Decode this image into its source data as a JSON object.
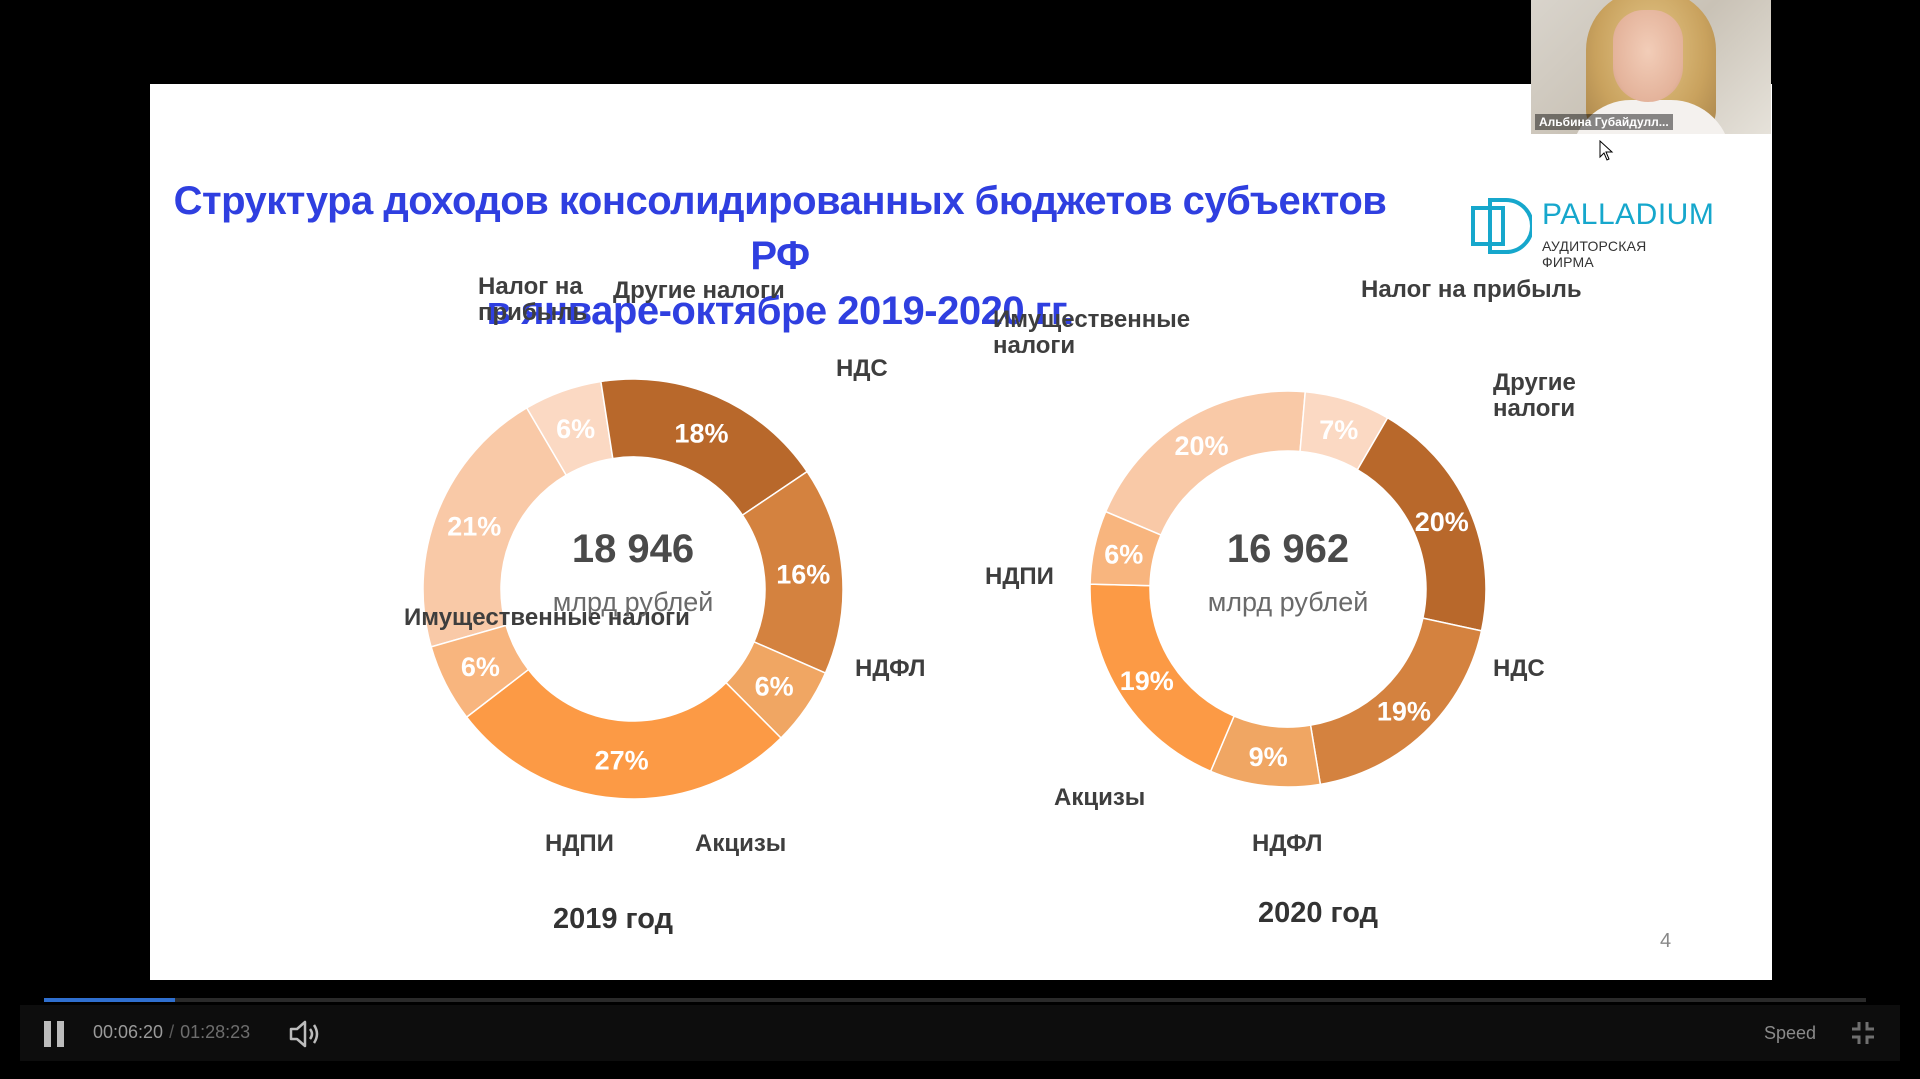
{
  "slide": {
    "title_line1": "Структура доходов консолидированных бюджетов субъектов РФ",
    "title_line2": "в январе-октябре 2019-2020 гг.",
    "logo_name": "PALLADIUM",
    "logo_sub": "АУДИТОРСКАЯ ФИРМА",
    "page_number": "4"
  },
  "colors": {
    "title": "#2f3fe0",
    "logo": "#16a7cc"
  },
  "chart_data": [
    {
      "type": "pie",
      "title": "2019 год",
      "center_value": "18 946",
      "center_unit": "млрд рублей",
      "slices": [
        {
          "label": "Налог на прибыль",
          "value": 21,
          "text": "21%",
          "color": "#f9c9a7"
        },
        {
          "label": "Другие налоги",
          "value": 6,
          "text": "6%",
          "color": "#fbd9c3"
        },
        {
          "label": "НДС",
          "value": 18,
          "text": "18%",
          "color": "#b8682b"
        },
        {
          "label": "НДФЛ",
          "value": 16,
          "text": "16%",
          "color": "#d4823f"
        },
        {
          "label": "Акцизы",
          "value": 6,
          "text": "6%",
          "color": "#f0a663"
        },
        {
          "label": "НДПИ",
          "value": 27,
          "text": "27%",
          "color": "#fc9a45"
        },
        {
          "label": "Имущественные налоги",
          "value": 6,
          "text": "6%",
          "color": "#f8b57e"
        }
      ]
    },
    {
      "type": "pie",
      "title": "2020 год",
      "center_value": "16 962",
      "center_unit": "млрд рублей",
      "slices": [
        {
          "label": "Налог на прибыль",
          "value": 20,
          "text": "20%",
          "color": "#f9c9a7"
        },
        {
          "label": "Другие налоги",
          "value": 7,
          "text": "7%",
          "color": "#fbd9c3"
        },
        {
          "label": "НДС",
          "value": 20,
          "text": "20%",
          "color": "#b8682b"
        },
        {
          "label": "НДФЛ",
          "value": 19,
          "text": "19%",
          "color": "#d4823f"
        },
        {
          "label": "Акцизы",
          "value": 9,
          "text": "9%",
          "color": "#f0a663"
        },
        {
          "label": "НДПИ",
          "value": 19,
          "text": "19%",
          "color": "#fc9a45"
        },
        {
          "label": "Имущественные налоги",
          "value": 6,
          "text": "6%",
          "color": "#f8b57e"
        }
      ]
    }
  ],
  "webcam": {
    "participant_name": "Альбина Губайдулл..."
  },
  "player": {
    "current_time": "00:06:20",
    "separator": "/",
    "total_time": "01:28:23",
    "speed_label": "Speed",
    "progress": 0.072
  }
}
